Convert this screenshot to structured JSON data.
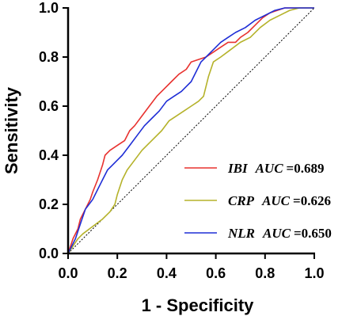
{
  "chart_data": {
    "type": "line",
    "xlabel": "1 - Specificity",
    "ylabel": "Sensitivity",
    "xlim": [
      0,
      1
    ],
    "ylim": [
      0,
      1
    ],
    "x_ticks": [
      "0.0",
      "0.2",
      "0.4",
      "0.6",
      "0.8",
      "1.0"
    ],
    "y_ticks": [
      "0.0",
      "0.2",
      "0.4",
      "0.6",
      "0.8",
      "1.0"
    ],
    "grid": false,
    "legend_position": "bottom-right",
    "reference_line": {
      "style": "dotted",
      "color": "#000000"
    },
    "series": [
      {
        "name": "IBI",
        "auc_label": "AUC",
        "auc_value": "=0.689",
        "color": "#e8322f",
        "points": [
          [
            0,
            0
          ],
          [
            0.01,
            0.03
          ],
          [
            0.02,
            0.06
          ],
          [
            0.04,
            0.1
          ],
          [
            0.05,
            0.14
          ],
          [
            0.07,
            0.18
          ],
          [
            0.09,
            0.22
          ],
          [
            0.1,
            0.25
          ],
          [
            0.12,
            0.3
          ],
          [
            0.14,
            0.36
          ],
          [
            0.15,
            0.4
          ],
          [
            0.17,
            0.42
          ],
          [
            0.2,
            0.44
          ],
          [
            0.23,
            0.46
          ],
          [
            0.25,
            0.5
          ],
          [
            0.27,
            0.52
          ],
          [
            0.3,
            0.56
          ],
          [
            0.33,
            0.6
          ],
          [
            0.36,
            0.64
          ],
          [
            0.39,
            0.67
          ],
          [
            0.42,
            0.7
          ],
          [
            0.45,
            0.73
          ],
          [
            0.48,
            0.75
          ],
          [
            0.5,
            0.78
          ],
          [
            0.53,
            0.79
          ],
          [
            0.56,
            0.8
          ],
          [
            0.59,
            0.82
          ],
          [
            0.62,
            0.84
          ],
          [
            0.65,
            0.86
          ],
          [
            0.68,
            0.86
          ],
          [
            0.7,
            0.88
          ],
          [
            0.73,
            0.9
          ],
          [
            0.76,
            0.93
          ],
          [
            0.79,
            0.96
          ],
          [
            0.82,
            0.98
          ],
          [
            0.85,
            0.99
          ],
          [
            0.88,
            1.0
          ],
          [
            1.0,
            1.0
          ]
        ]
      },
      {
        "name": "CRP",
        "auc_label": "AUC",
        "auc_value": "=0.626",
        "color": "#b5b22a",
        "points": [
          [
            0,
            0
          ],
          [
            0.02,
            0.03
          ],
          [
            0.04,
            0.06
          ],
          [
            0.06,
            0.08
          ],
          [
            0.1,
            0.11
          ],
          [
            0.14,
            0.14
          ],
          [
            0.17,
            0.17
          ],
          [
            0.19,
            0.2
          ],
          [
            0.2,
            0.24
          ],
          [
            0.22,
            0.3
          ],
          [
            0.24,
            0.34
          ],
          [
            0.27,
            0.38
          ],
          [
            0.3,
            0.42
          ],
          [
            0.34,
            0.46
          ],
          [
            0.38,
            0.5
          ],
          [
            0.41,
            0.54
          ],
          [
            0.44,
            0.56
          ],
          [
            0.47,
            0.58
          ],
          [
            0.5,
            0.6
          ],
          [
            0.53,
            0.62
          ],
          [
            0.55,
            0.64
          ],
          [
            0.57,
            0.72
          ],
          [
            0.59,
            0.78
          ],
          [
            0.62,
            0.8
          ],
          [
            0.66,
            0.83
          ],
          [
            0.7,
            0.86
          ],
          [
            0.74,
            0.88
          ],
          [
            0.78,
            0.92
          ],
          [
            0.82,
            0.95
          ],
          [
            0.86,
            0.97
          ],
          [
            0.9,
            0.99
          ],
          [
            0.94,
            1.0
          ],
          [
            1.0,
            1.0
          ]
        ]
      },
      {
        "name": "NLR",
        "auc_label": "AUC",
        "auc_value": "=0.650",
        "color": "#1f2ed6",
        "points": [
          [
            0,
            0
          ],
          [
            0.01,
            0.02
          ],
          [
            0.03,
            0.06
          ],
          [
            0.05,
            0.12
          ],
          [
            0.07,
            0.18
          ],
          [
            0.1,
            0.22
          ],
          [
            0.12,
            0.26
          ],
          [
            0.14,
            0.3
          ],
          [
            0.16,
            0.34
          ],
          [
            0.18,
            0.36
          ],
          [
            0.2,
            0.38
          ],
          [
            0.22,
            0.4
          ],
          [
            0.25,
            0.44
          ],
          [
            0.28,
            0.48
          ],
          [
            0.31,
            0.52
          ],
          [
            0.34,
            0.55
          ],
          [
            0.37,
            0.58
          ],
          [
            0.4,
            0.62
          ],
          [
            0.43,
            0.64
          ],
          [
            0.46,
            0.66
          ],
          [
            0.48,
            0.68
          ],
          [
            0.5,
            0.7
          ],
          [
            0.52,
            0.74
          ],
          [
            0.54,
            0.78
          ],
          [
            0.56,
            0.8
          ],
          [
            0.59,
            0.83
          ],
          [
            0.62,
            0.86
          ],
          [
            0.65,
            0.88
          ],
          [
            0.68,
            0.9
          ],
          [
            0.72,
            0.92
          ],
          [
            0.76,
            0.95
          ],
          [
            0.8,
            0.97
          ],
          [
            0.84,
            0.99
          ],
          [
            0.88,
            1.0
          ],
          [
            1.0,
            1.0
          ]
        ]
      }
    ]
  }
}
